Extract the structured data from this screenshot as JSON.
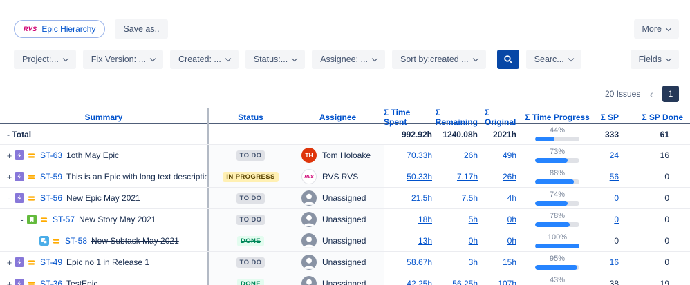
{
  "colors": {
    "link": "#0052CC",
    "header_text": "#0052CC",
    "progress_fill": "#2684FF",
    "epic": "#8777D9",
    "story": "#63BA3C",
    "subtask": "#4BADE8",
    "priority_medium": "#FFAB00",
    "logo": "#CF0072",
    "search_button_bg": "#0747A6"
  },
  "toolbar": {
    "logo": "RVS",
    "view_button": "Epic Hierarchy",
    "save_as": "Save as..",
    "more": "More"
  },
  "filters": [
    "Project:...",
    "Fix Version: ...",
    "Created: ...",
    "Status:...",
    "Assignee: ...",
    "Sort by:created ..."
  ],
  "search_button": "Searc...",
  "fields_button": "Fields",
  "pagination": {
    "count": "20 Issues",
    "prev": "‹",
    "page": "1"
  },
  "table": {
    "headers": [
      "Summary",
      "Status",
      "Assignee",
      "Σ Time Spent",
      "Σ Remaining",
      "Σ Original",
      "Σ Time Progress",
      "Σ SP",
      "Σ SP Done"
    ],
    "total": {
      "label": "- Total",
      "time_spent": "992.92h",
      "remaining": "1240.08h",
      "original": "2021h",
      "progress": 44,
      "sp": "333",
      "sp_done": "61"
    },
    "rows": [
      {
        "indent": 0,
        "expander": "+",
        "icon": "epic",
        "key": "ST-63",
        "summary": "1oth May Epic",
        "done": false,
        "status": "TO DO",
        "status_kind": "todo",
        "assignee": "Tom Holoake",
        "avatar": {
          "kind": "initials",
          "text": "TH",
          "color": "#DE350B"
        },
        "time_spent": "70.33h",
        "remaining": "26h",
        "original": "49h",
        "progress": 73,
        "sp": "24",
        "sp_link": true,
        "sp_done": "16"
      },
      {
        "indent": 0,
        "expander": "+",
        "icon": "epic",
        "key": "ST-59",
        "summary": "This is an Epic with long text description",
        "done": false,
        "status": "IN PROGRESS",
        "status_kind": "inprogress",
        "assignee": "RVS RVS",
        "avatar": {
          "kind": "logo",
          "text": "RVS"
        },
        "time_spent": "50.33h",
        "remaining": "7.17h",
        "original": "26h",
        "progress": 88,
        "sp": "56",
        "sp_link": true,
        "sp_done": "0"
      },
      {
        "indent": 0,
        "expander": "-",
        "icon": "epic",
        "key": "ST-56",
        "summary": "New Epic May 2021",
        "done": false,
        "status": "TO DO",
        "status_kind": "todo",
        "assignee": "Unassigned",
        "avatar": {
          "kind": "unassigned"
        },
        "time_spent": "21.5h",
        "remaining": "7.5h",
        "original": "4h",
        "progress": 74,
        "sp": "0",
        "sp_link": true,
        "sp_done": "0"
      },
      {
        "indent": 1,
        "expander": "-",
        "icon": "story",
        "key": "ST-57",
        "summary": "New Story May 2021",
        "done": false,
        "status": "TO DO",
        "status_kind": "todo",
        "assignee": "Unassigned",
        "avatar": {
          "kind": "unassigned"
        },
        "time_spent": "18h",
        "remaining": "5h",
        "original": "0h",
        "progress": 78,
        "sp": "0",
        "sp_link": true,
        "sp_done": "0"
      },
      {
        "indent": 2,
        "expander": "",
        "icon": "subtask",
        "key": "ST-58",
        "summary": "New Subtask May 2021",
        "done": true,
        "status": "DONE",
        "status_kind": "done",
        "assignee": "Unassigned",
        "avatar": {
          "kind": "unassigned"
        },
        "time_spent": "13h",
        "remaining": "0h",
        "original": "0h",
        "progress": 100,
        "sp": "0",
        "sp_link": false,
        "sp_done": "0"
      },
      {
        "indent": 0,
        "expander": "+",
        "icon": "epic",
        "key": "ST-49",
        "summary": "Epic no 1 in Release 1",
        "done": false,
        "status": "TO DO",
        "status_kind": "todo",
        "assignee": "Unassigned",
        "avatar": {
          "kind": "unassigned"
        },
        "time_spent": "58.67h",
        "remaining": "3h",
        "original": "15h",
        "progress": 95,
        "sp": "16",
        "sp_link": true,
        "sp_done": "0"
      },
      {
        "indent": 0,
        "expander": "+",
        "icon": "epic",
        "key": "ST-36",
        "summary": "TestEpic",
        "done": true,
        "status": "DONE",
        "status_kind": "done",
        "assignee": "Unassigned",
        "avatar": {
          "kind": "unassigned"
        },
        "time_spent": "42.25h",
        "remaining": "56.25h",
        "original": "107h",
        "progress": 43,
        "sp": "38",
        "sp_link": false,
        "sp_done": "19"
      }
    ]
  }
}
